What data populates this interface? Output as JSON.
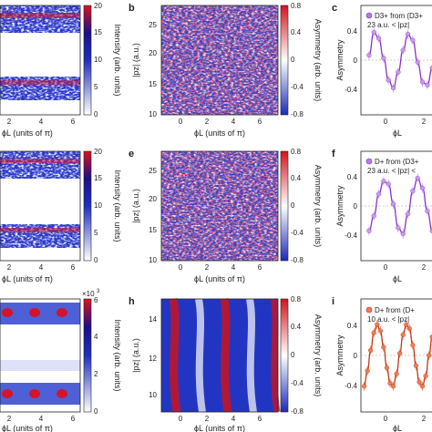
{
  "figure": {
    "panel_letters": [
      "b",
      "c",
      "e",
      "f",
      "h",
      "i"
    ],
    "colorbar_units": "Intensity (arb. units)",
    "colorbar_asym_units": "Asymmetry (arb. units)",
    "axis_phi": "ϕL (units of π)",
    "axis_phi_short": "ϕL",
    "axis_pz": "|pz| (a.u.)",
    "axis_asym": "Asymmetry",
    "exp_label": "×10",
    "exp_power": "3"
  },
  "panels": {
    "a": {
      "x_ticks": [
        "2",
        "4",
        "6"
      ],
      "cbar_ticks": [
        "0",
        "5",
        "10",
        "15",
        "20"
      ]
    },
    "b": {
      "y_ticks": [
        "10",
        "15",
        "20",
        "25"
      ],
      "x_ticks": [
        "0",
        "2",
        "4",
        "6"
      ],
      "cbar_ticks": [
        "-0.8",
        "-0.4",
        "0",
        "0.4",
        "0.8"
      ]
    },
    "c": {
      "legend_title": "D3+ from (D3+",
      "legend_range": "23 a.u. < |pz|",
      "y_ticks": [
        "0.4",
        "0",
        "-0.4"
      ],
      "x_ticks": [
        "0",
        "2"
      ]
    },
    "d": {
      "x_ticks": [
        "2",
        "4",
        "6"
      ],
      "cbar_ticks": [
        "0",
        "5",
        "10",
        "15",
        "20"
      ]
    },
    "e": {
      "y_ticks": [
        "10",
        "15",
        "20",
        "25"
      ],
      "x_ticks": [
        "0",
        "2",
        "4",
        "6"
      ],
      "cbar_ticks": [
        "-0.8",
        "-0.4",
        "0",
        "0.4",
        "0.8"
      ]
    },
    "f": {
      "legend_title": "D+ from (D3+",
      "legend_range": "23 a.u. < |pz| <",
      "y_ticks": [
        "0.4",
        "0",
        "-0.4"
      ],
      "x_ticks": [
        "0",
        "2"
      ]
    },
    "g": {
      "x_ticks": [
        "2",
        "4",
        "6"
      ],
      "cbar_ticks": [
        "0",
        "2",
        "4",
        "6"
      ]
    },
    "h": {
      "y_ticks": [
        "10",
        "12",
        "14"
      ],
      "x_ticks": [
        "0",
        "2",
        "4",
        "6"
      ],
      "cbar_ticks": [
        "-0.8",
        "-0.4",
        "0",
        "0.4",
        "0.8"
      ]
    },
    "i": {
      "legend_title": "D+ from (D+",
      "legend_range": "10 a.u. < |pz|",
      "y_ticks": [
        "0.4",
        "0",
        "-0.4"
      ],
      "x_ticks": [
        "0",
        "2"
      ]
    }
  },
  "chart_data": [
    {
      "type": "scatter",
      "name": "c",
      "x": [
        -1.0,
        -0.7,
        -0.4,
        -0.1,
        0.2,
        0.5,
        0.8,
        1.1,
        1.4,
        1.7,
        2.0,
        2.3,
        2.6,
        2.9
      ],
      "y": [
        0.05,
        0.28,
        0.22,
        0.02,
        -0.2,
        -0.28,
        -0.12,
        0.1,
        0.26,
        0.2,
        -0.02,
        -0.22,
        -0.25,
        -0.08
      ],
      "xlim": [
        -1.5,
        3.0
      ],
      "ylim": [
        -0.55,
        0.55
      ]
    },
    {
      "type": "scatter",
      "name": "f",
      "x": [
        -1.0,
        -0.7,
        -0.4,
        -0.1,
        0.2,
        0.5,
        0.8,
        1.1,
        1.4,
        1.7,
        2.0,
        2.3,
        2.6,
        2.9
      ],
      "y": [
        -0.25,
        -0.1,
        0.12,
        0.25,
        0.22,
        0.02,
        -0.22,
        -0.28,
        -0.08,
        0.15,
        0.28,
        0.18,
        -0.05,
        -0.25
      ],
      "xlim": [
        -1.5,
        3.0
      ],
      "ylim": [
        -0.55,
        0.55
      ]
    },
    {
      "type": "scatter",
      "name": "i",
      "x": [
        -1.3,
        -1.1,
        -0.9,
        -0.7,
        -0.5,
        -0.3,
        -0.1,
        0.1,
        0.3,
        0.5,
        0.7,
        0.9,
        1.1,
        1.3,
        1.5,
        1.7,
        1.9,
        2.1,
        2.3,
        2.5,
        2.7,
        2.9
      ],
      "y": [
        -0.3,
        -0.15,
        0.05,
        0.22,
        0.3,
        0.24,
        0.08,
        -0.12,
        -0.27,
        -0.3,
        -0.18,
        0.02,
        0.2,
        0.3,
        0.26,
        0.1,
        -0.1,
        -0.26,
        -0.3,
        -0.2,
        0.0,
        0.18
      ],
      "xlim": [
        -1.5,
        3.0
      ],
      "ylim": [
        -0.55,
        0.55
      ]
    }
  ]
}
